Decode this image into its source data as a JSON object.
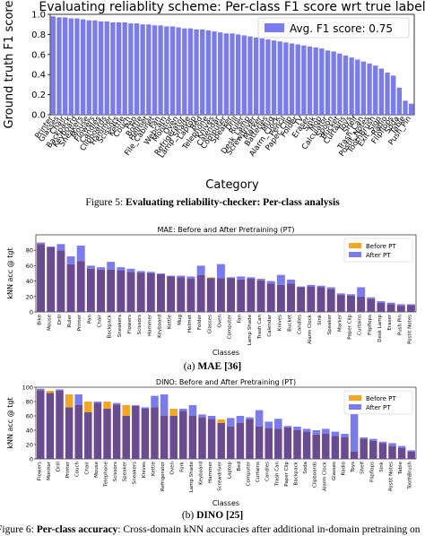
{
  "figure5": {
    "caption_prefix": "Figure 5:",
    "caption_bold": "Evaluating reliability-checker: Per-class analysis"
  },
  "figure6": {
    "caption_prefix": "Figure 6:",
    "caption_bold": "Per-class accuracy",
    "caption_rest": ": Cross-domain kNN accuracies after additional in-domain pretraining on"
  },
  "subcaption_a": {
    "prefix": "(a)",
    "bold": "MAE [36]"
  },
  "subcaption_b": {
    "prefix": "(b)",
    "bold": "DINO [25]"
  },
  "chart_data": [
    {
      "type": "bar",
      "title": "Evaluating reliablity scheme: Per-class F1 score wrt true label",
      "xlabel": "Category",
      "ylabel": "Ground truth F1 score",
      "ylim": [
        0,
        1.0
      ],
      "yticks": [
        "0.0",
        "0.2",
        "0.4",
        "0.6",
        "0.8",
        "1.0"
      ],
      "legend": "Avg. F1 score: 0.75",
      "legend_placement": "top-right",
      "color": "#7b7bf0",
      "categories": [
        "Printer",
        "Glasses",
        "Chair",
        "Backpack",
        "Keyboard",
        "Sneakers",
        "Mouse",
        "Flowers",
        "Candles",
        "Clipboards",
        "Hammer",
        "Scissors",
        "Kettle",
        "Couch",
        "Pen",
        "Bottle",
        "Helmet",
        "File_Cabinet",
        "Fan",
        "Webcam",
        "Monitor",
        "Oven",
        "Refrigerator",
        "Lamp_Shade",
        "Laptop",
        "Bed",
        "Telephone",
        "Knives",
        "Calendar",
        "Computer",
        "Speaker",
        "Drill",
        "Ruler",
        "Desk_Lamp",
        "Screwdriver",
        "Marker",
        "Batteries",
        "Mug",
        "Alarm_Clock",
        "Pencil",
        "Paper_Clip",
        "Folder",
        "TV",
        "Eraser",
        "Sink",
        "Mop",
        "Calculator",
        "Spoon",
        "Bucket",
        "Curtains",
        "Toys",
        "Shelf",
        "Trash_Can",
        "Postit_Notes",
        "ToothBrush",
        "Exit_Sign",
        "Radio",
        "Flipflops",
        "Soda",
        "Table",
        "Push_Pin"
      ],
      "values": [
        0.98,
        0.97,
        0.97,
        0.96,
        0.96,
        0.95,
        0.94,
        0.94,
        0.93,
        0.93,
        0.92,
        0.92,
        0.92,
        0.91,
        0.91,
        0.9,
        0.9,
        0.89,
        0.89,
        0.88,
        0.88,
        0.87,
        0.86,
        0.86,
        0.85,
        0.85,
        0.84,
        0.83,
        0.82,
        0.81,
        0.81,
        0.8,
        0.79,
        0.78,
        0.77,
        0.76,
        0.75,
        0.74,
        0.73,
        0.72,
        0.71,
        0.7,
        0.69,
        0.68,
        0.67,
        0.66,
        0.64,
        0.63,
        0.61,
        0.59,
        0.57,
        0.55,
        0.53,
        0.51,
        0.49,
        0.46,
        0.42,
        0.39,
        0.27,
        0.14,
        0.11
      ]
    },
    {
      "type": "bar",
      "title": "MAE: Before and After Pretraining (PT)",
      "xlabel": "Classes",
      "ylabel": "kNN acc @ tgt",
      "ylim": [
        0,
        100
      ],
      "yticks": [
        "0",
        "20",
        "40",
        "60",
        "80"
      ],
      "legend_placement": "top-right",
      "series": [
        {
          "name": "Before PT",
          "color": "#f5a623"
        },
        {
          "name": "After PT",
          "color": "#7b7bf0"
        }
      ],
      "overlap_color": "#6a4a90",
      "categories": [
        "Bike",
        "Mouse",
        "Drill",
        "Ruler",
        "Printer",
        "Pan",
        "Chair",
        "Backpack",
        "Sneakers",
        "Flowers",
        "Scissors",
        "Hammer",
        "Keyboard",
        "Kettle",
        "Mug",
        "Helmet",
        "Folder",
        "Glasses",
        "Oven",
        "Computer",
        "Fan",
        "Lamp Shade",
        "Trash Can",
        "Calendar",
        "Knives",
        "Bucket",
        "Candles",
        "Alarm Clock",
        "Sink",
        "Speaker",
        "Marker",
        "Paper Clip",
        "Curtains",
        "Flipflops",
        "Desk Lamp",
        "Eraser",
        "Push Pin",
        "Postit Notes"
      ],
      "before": [
        88,
        84,
        80,
        62,
        66,
        56,
        55,
        55,
        54,
        52,
        51,
        50,
        49,
        46,
        45,
        43,
        48,
        45,
        44,
        44,
        42,
        43,
        41,
        37,
        35,
        37,
        32,
        33,
        32,
        30,
        22,
        21,
        20,
        17,
        12,
        10,
        8,
        9
      ],
      "after": [
        90,
        85,
        88,
        72,
        86,
        60,
        58,
        65,
        58,
        56,
        53,
        52,
        50,
        47,
        47,
        46,
        60,
        44,
        62,
        45,
        46,
        45,
        43,
        40,
        48,
        42,
        33,
        35,
        34,
        32,
        24,
        23,
        32,
        19,
        14,
        12,
        10,
        10
      ]
    },
    {
      "type": "bar",
      "title": "DINO: Before and After Pretraining (PT)",
      "xlabel": "Classes",
      "ylabel": "kNN acc @ tgt",
      "ylim": [
        0,
        100
      ],
      "yticks": [
        "0",
        "20",
        "40",
        "60",
        "80",
        "100"
      ],
      "legend_placement": "top-right",
      "series": [
        {
          "name": "Before PT",
          "color": "#f5a623"
        },
        {
          "name": "After PT",
          "color": "#7b7bf0"
        }
      ],
      "overlap_color": "#6a4a90",
      "categories": [
        "Flowers",
        "Monitor",
        "Drill",
        "Printer",
        "Couch",
        "Chair",
        "Mouse",
        "Telephone",
        "Scissors",
        "Speaker",
        "Sneakers",
        "Knives",
        "Kettle",
        "Refrigerator",
        "Oven",
        "Fork",
        "Lamp Shade",
        "Keyboard",
        "Hammer",
        "Screwdriver",
        "Laptop",
        "Bed",
        "Computer",
        "Curtains",
        "Candles",
        "Trash Can",
        "Paper Clip",
        "Backpack",
        "Soda",
        "Clipboards",
        "Alarm Clock",
        "Glasses",
        "Radio",
        "Toys",
        "Shelf",
        "Flipflops",
        "Sink",
        "Postit Notes",
        "Table",
        "ToothBrush"
      ],
      "before": [
        96,
        95,
        95,
        90,
        75,
        80,
        78,
        80,
        76,
        75,
        74,
        70,
        72,
        60,
        70,
        67,
        60,
        58,
        56,
        55,
        45,
        50,
        55,
        45,
        43,
        42,
        44,
        40,
        38,
        34,
        35,
        32,
        30,
        10,
        28,
        25,
        22,
        18,
        15,
        10
      ],
      "after": [
        98,
        92,
        97,
        72,
        90,
        65,
        80,
        70,
        78,
        60,
        75,
        72,
        88,
        90,
        60,
        70,
        75,
        62,
        60,
        50,
        57,
        60,
        58,
        68,
        52,
        56,
        46,
        45,
        42,
        40,
        42,
        38,
        35,
        85,
        30,
        28,
        24,
        22,
        18,
        12
      ]
    }
  ]
}
